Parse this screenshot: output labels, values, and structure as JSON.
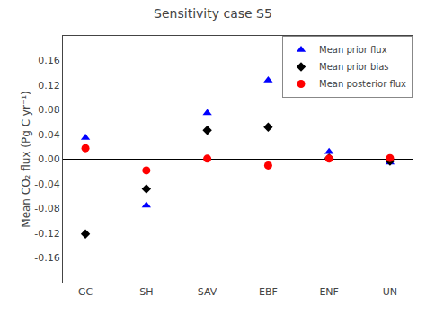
{
  "chart_data": {
    "type": "scatter",
    "title": "Sensitivity case S5",
    "ylabel": "Mean CO₂ flux (Pg C yr⁻¹)",
    "categories": [
      "GC",
      "SH",
      "SAV",
      "EBF",
      "ENF",
      "UN"
    ],
    "series": [
      {
        "name": "Mean prior flux",
        "color": "#0000ff",
        "marker": "triangle-up",
        "values": [
          0.035,
          -0.075,
          0.075,
          0.128,
          0.012,
          -0.005
        ]
      },
      {
        "name": "Mean prior bias",
        "color": "#000000",
        "marker": "diamond",
        "values": [
          -0.121,
          -0.048,
          0.047,
          0.052,
          0.002,
          -0.003
        ]
      },
      {
        "name": "Mean posterior flux",
        "color": "#ff0000",
        "marker": "circle",
        "values": [
          0.018,
          -0.018,
          0.001,
          -0.01,
          0.001,
          0.002
        ]
      }
    ],
    "ylim": [
      -0.2,
      0.2
    ],
    "yticks": [
      -0.16,
      -0.12,
      -0.08,
      -0.04,
      {
        "value": 0,
        "label": "0.00"
      },
      0.04,
      0.08,
      0.12,
      0.16
    ],
    "grid": false,
    "legend": "upper right"
  }
}
